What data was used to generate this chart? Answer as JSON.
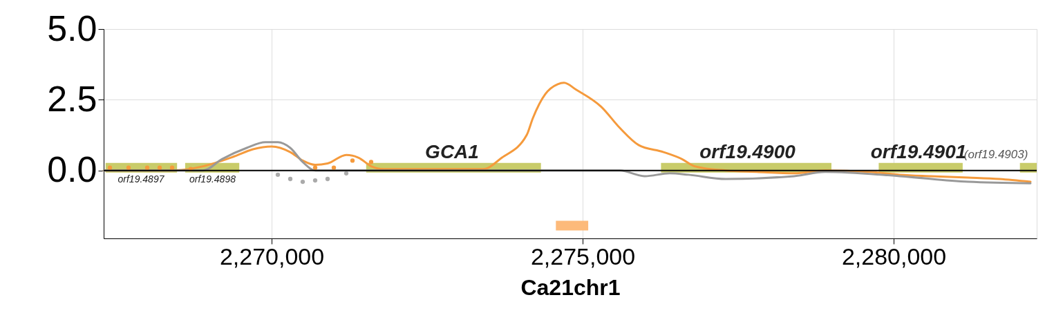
{
  "chart_data": {
    "type": "line",
    "xlabel": "Ca21chr1",
    "xlim": [
      2267300,
      2282300
    ],
    "ylim": [
      -2.4,
      5.0
    ],
    "xticks": [
      {
        "value": 2270000,
        "label": "2,270,000"
      },
      {
        "value": 2275000,
        "label": "2,275,000"
      },
      {
        "value": 2280000,
        "label": "2,280,000"
      }
    ],
    "yticks": [
      {
        "value": 0,
        "label": "0.0"
      },
      2.5,
      {
        "value": 5,
        "label": "5.0"
      }
    ],
    "grid": true,
    "line_style": "solid",
    "ref_lines": [
      {
        "axis": "y",
        "value": 0,
        "color": "#000000"
      }
    ],
    "series": [
      {
        "color": "#f59a3c",
        "marker": "none",
        "x": [
          2267300,
          2268400,
          2268900,
          2269400,
          2269700,
          2270000,
          2270300,
          2270500,
          2270700,
          2270900,
          2271200,
          2271400,
          2271600,
          2271800,
          2273400,
          2273700,
          2274100,
          2274200,
          2274400,
          2274600,
          2274700,
          2274900,
          2275300,
          2275600,
          2275900,
          2276300,
          2276600,
          2276800,
          2277300,
          2277800,
          2278400,
          2278900,
          2279600,
          2280100,
          2280600,
          2281200,
          2281700,
          2282200
        ],
        "values": [
          0.0,
          0.0,
          0.15,
          0.5,
          0.75,
          0.85,
          0.65,
          0.35,
          0.2,
          0.25,
          0.55,
          0.45,
          0.15,
          0.05,
          0.05,
          0.45,
          1.25,
          1.85,
          2.7,
          3.05,
          3.1,
          2.85,
          2.25,
          1.5,
          0.9,
          0.65,
          0.4,
          0.15,
          0.0,
          -0.05,
          -0.1,
          0.0,
          -0.05,
          -0.15,
          -0.2,
          -0.25,
          -0.3,
          -0.4
        ]
      },
      {
        "color": "#999999",
        "marker": "none",
        "x": [
          2267300,
          2268900,
          2269200,
          2269600,
          2269900,
          2270100,
          2270300,
          2270500,
          2270700,
          2273400,
          2275600,
          2276000,
          2276400,
          2276700,
          2277300,
          2278400,
          2278900,
          2280100,
          2281200,
          2282200
        ],
        "values": [
          0.0,
          0.0,
          0.4,
          0.8,
          1.0,
          1.0,
          0.8,
          0.3,
          0.0,
          0.0,
          0.0,
          -0.2,
          -0.1,
          -0.15,
          -0.3,
          -0.2,
          -0.05,
          -0.2,
          -0.4,
          -0.45
        ]
      },
      {
        "type": "scatter",
        "color": "#f59a3c",
        "marker": "circle",
        "x": [
          2267400,
          2267700,
          2268000,
          2268200,
          2268400,
          2268700,
          2270700,
          2271000,
          2271300,
          2271600
        ],
        "values": [
          0.1,
          0.1,
          0.1,
          0.1,
          0.1,
          0.05,
          0.1,
          0.1,
          0.35,
          0.3
        ]
      },
      {
        "type": "scatter",
        "color": "#aaaaaa",
        "marker": "circle",
        "x": [
          2270100,
          2270300,
          2270500,
          2270700,
          2270900,
          2271200
        ],
        "values": [
          -0.15,
          -0.3,
          -0.4,
          -0.35,
          -0.3,
          -0.1
        ]
      },
      {
        "color": "#c9cc6a",
        "marker": "none",
        "x": [
          2267330,
          2268480,
          2268540,
          2268610,
          2269480,
          2270500,
          2271520,
          2274330,
          2275300,
          2276260,
          2279000,
          2279400,
          2279760,
          2281110,
          2281600,
          2282030,
          2282300
        ],
        "values": [
          0.1,
          0.1,
          null,
          0.1,
          0.1,
          null,
          0.1,
          0.1,
          null,
          0.1,
          0.1,
          null,
          0.1,
          0.1,
          null,
          0.1,
          0.1
        ]
      },
      {
        "color": "#fdba7a",
        "marker": "none",
        "x": [
          2274570,
          2275090
        ],
        "values": [
          -1.95,
          -1.95
        ]
      }
    ],
    "annotations": [
      {
        "text": "orf19.4897",
        "x": 2267900,
        "y": 0.1
      },
      {
        "text": "orf19.4898",
        "x": 2269050,
        "y": 0.1
      },
      {
        "text": "GCA1",
        "x": 2272900,
        "y": 0.1
      },
      {
        "text": "orf19.4900",
        "x": 2277650,
        "y": 0.1
      },
      {
        "text": "orf19.4901",
        "x": 2280400,
        "y": 0.1
      },
      {
        "text": "(orf19.4903)",
        "x": 2282160,
        "y": 0.1
      }
    ]
  }
}
